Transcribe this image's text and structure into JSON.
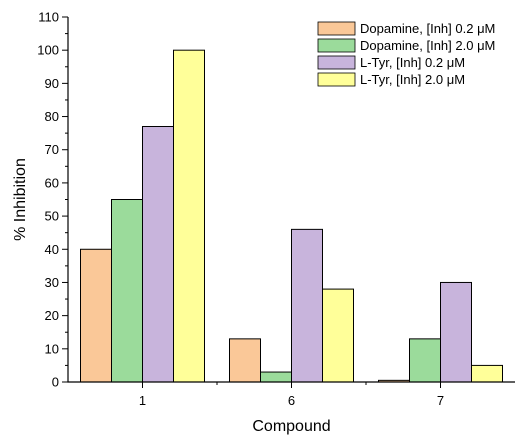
{
  "chart_data": {
    "type": "bar",
    "categories": [
      "1",
      "6",
      "7"
    ],
    "series": [
      {
        "name": "Dopamine, [Inh] 0.2 μM",
        "color": "#FAC898",
        "values": [
          40,
          13,
          0.5
        ]
      },
      {
        "name": "Dopamine, [Inh] 2.0 μM",
        "color": "#9BDB9B",
        "values": [
          55,
          3,
          13
        ]
      },
      {
        "name": "L-Tyr, [Inh] 0.2 μM",
        "color": "#C8B4DC",
        "values": [
          77,
          46,
          30
        ]
      },
      {
        "name": "L-Tyr, [Inh] 2.0 μM",
        "color": "#FFFF99",
        "values": [
          100,
          28,
          5
        ]
      }
    ],
    "xlabel": "Compound",
    "ylabel": "% Inhibition",
    "ylim": [
      0,
      110
    ],
    "yticks": [
      0,
      10,
      20,
      30,
      40,
      50,
      60,
      70,
      80,
      90,
      100,
      110
    ],
    "yticks_text": [
      "0",
      "10",
      "20",
      "30",
      "40",
      "50",
      "60",
      "70",
      "80",
      "90",
      "100",
      "110"
    ],
    "grid": false,
    "legend_position": "top-right"
  }
}
